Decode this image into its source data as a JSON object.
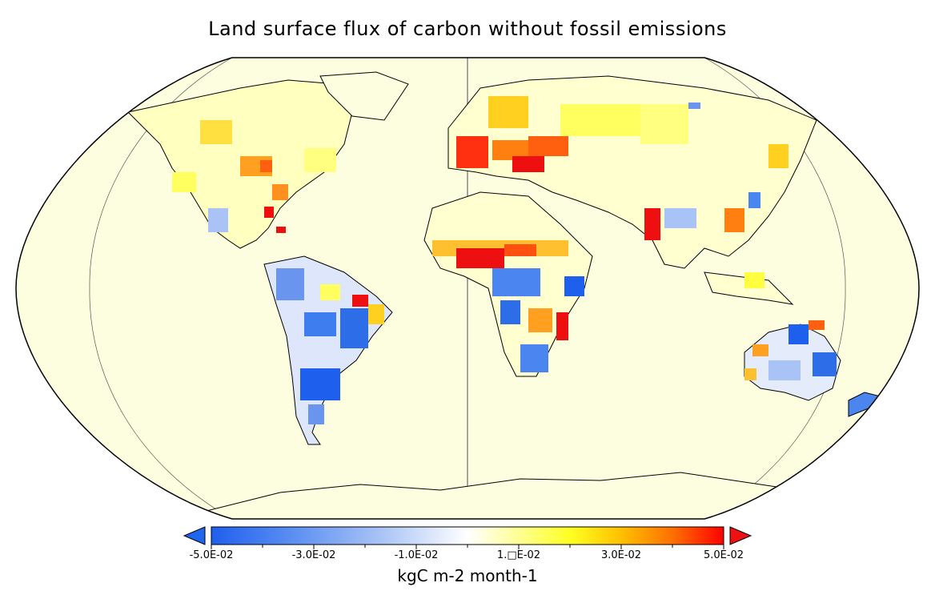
{
  "title": "Land surface flux of carbon without fossil emissions",
  "colorbar": {
    "units": "kgC m-2 month-1",
    "ticks": [
      "-5.0E-02",
      "-3.0E-02",
      "-1.0E-02",
      "1.□E-02",
      "3.0E-02",
      "5.0E-02"
    ],
    "min": -0.05,
    "max": 0.05,
    "colors": [
      "#1f5fee",
      "#5c8ff2",
      "#a9c3f6",
      "#ffffff",
      "#ffffaa",
      "#ffff22",
      "#ffc000",
      "#ff7000",
      "#ff0000"
    ],
    "underflow_color": "#1f66ee",
    "overflow_color": "#ee1111"
  },
  "map": {
    "projection": "Robinson",
    "background_color": "#fdfde0",
    "regions": [
      {
        "name": "Western Europe",
        "value": 0.05
      },
      {
        "name": "Eastern Europe",
        "value": 0.045
      },
      {
        "name": "Sahel",
        "value": 0.05
      },
      {
        "name": "India",
        "value": 0.05
      },
      {
        "name": "East Africa",
        "value": 0.05
      },
      {
        "name": "NE Brazil",
        "value": 0.05
      },
      {
        "name": "Amazon",
        "value": -0.045
      },
      {
        "name": "Southern South America",
        "value": -0.05
      },
      {
        "name": "Southern Africa",
        "value": -0.045
      },
      {
        "name": "Central Africa",
        "value": -0.035
      },
      {
        "name": "Australia",
        "value": -0.02
      },
      {
        "name": "North America",
        "value": 0.02
      },
      {
        "name": "Siberia",
        "value": 0.005
      }
    ]
  }
}
